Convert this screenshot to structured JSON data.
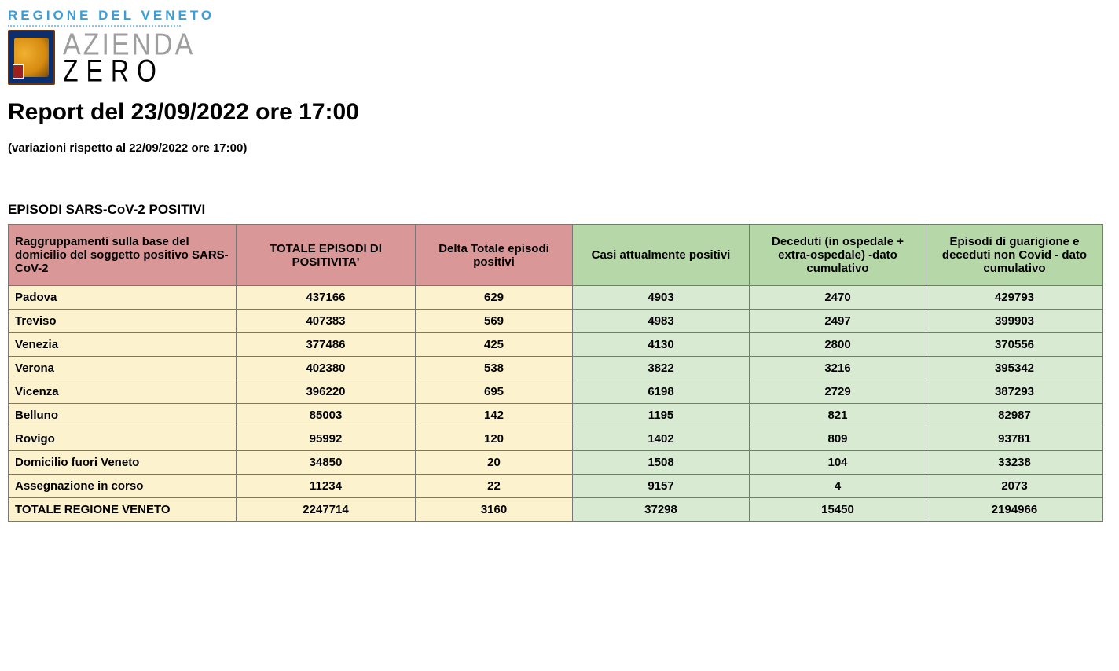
{
  "header": {
    "region_label": "REGIONE DEL VENETO",
    "logo_line1": "AZIENDA",
    "logo_line2": "ZERO"
  },
  "title": "Report del 23/09/2022 ore 17:00",
  "subtitle": "(variazioni rispetto al 22/09/2022 ore 17:00)",
  "section_title": "EPISODI SARS-CoV-2 POSITIVI",
  "table": {
    "columns": [
      "Raggruppamenti sulla base del domicilio del soggetto positivo SARS-CoV-2",
      "TOTALE EPISODI DI POSITIVITA'",
      "Delta Totale episodi positivi",
      "Casi attualmente positivi",
      "Deceduti (in ospedale + extra-ospedale) -dato cumulativo",
      "Episodi di guarigione e deceduti non Covid - dato cumulativo"
    ],
    "header_colors": [
      "#da9797",
      "#da9797",
      "#da9797",
      "#b6d7a7",
      "#b6d7a7",
      "#b6d7a7"
    ],
    "col_group": [
      "yellow",
      "yellow",
      "yellow",
      "green",
      "green",
      "green"
    ],
    "rows": [
      [
        "Padova",
        "437166",
        "629",
        "4903",
        "2470",
        "429793"
      ],
      [
        "Treviso",
        "407383",
        "569",
        "4983",
        "2497",
        "399903"
      ],
      [
        "Venezia",
        "377486",
        "425",
        "4130",
        "2800",
        "370556"
      ],
      [
        "Verona",
        "402380",
        "538",
        "3822",
        "3216",
        "395342"
      ],
      [
        "Vicenza",
        "396220",
        "695",
        "6198",
        "2729",
        "387293"
      ],
      [
        "Belluno",
        "85003",
        "142",
        "1195",
        "821",
        "82987"
      ],
      [
        "Rovigo",
        "95992",
        "120",
        "1402",
        "809",
        "93781"
      ],
      [
        "Domicilio fuori Veneto",
        "34850",
        "20",
        "1508",
        "104",
        "33238"
      ],
      [
        "Assegnazione in corso",
        "11234",
        "22",
        "9157",
        "4",
        "2073"
      ],
      [
        "TOTALE REGIONE VENETO",
        "2247714",
        "3160",
        "37298",
        "15450",
        "2194966"
      ]
    ],
    "total_row_index": 9,
    "yellow_bg": "#fcf2ce",
    "green_bg": "#d8ead2",
    "border_color": "#777777"
  }
}
